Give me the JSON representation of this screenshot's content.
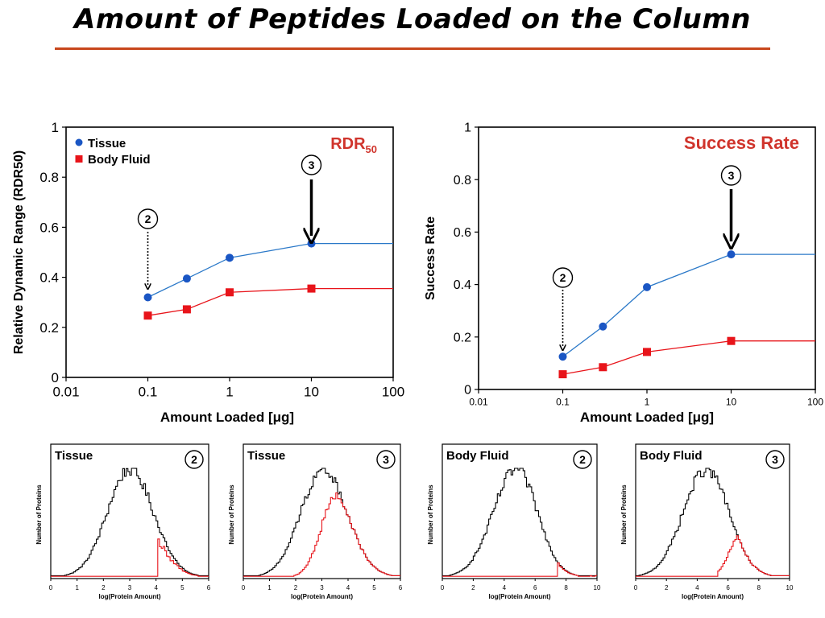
{
  "slide": {
    "title": "Amount of Peptides Loaded on the Column"
  },
  "colors": {
    "tissue": "#1a56c4",
    "tissue_line": "#2a78c8",
    "fluid": "#e8141a",
    "label_red": "#d0342c"
  },
  "chart_data": [
    {
      "id": "rdr50",
      "type": "line",
      "title": "RDR",
      "title_sub": "50",
      "xlabel": "Amount Loaded [μg]",
      "ylabel": "Relative Dynamic Range (RDR50)",
      "x_scale": "log",
      "xlim": [
        0.01,
        100
      ],
      "ylim": [
        0,
        1
      ],
      "xticks": [
        "0.01",
        "0.1",
        "1",
        "10",
        "100"
      ],
      "yticks": [
        "0",
        "0.2",
        "0.4",
        "0.6",
        "0.8",
        "1"
      ],
      "legend": "top-left",
      "series": [
        {
          "name": "Tissue",
          "marker": "circle",
          "x": [
            0.1,
            0.3,
            1,
            10
          ],
          "y": [
            0.32,
            0.395,
            0.478,
            0.535
          ],
          "plateau": 0.535
        },
        {
          "name": "Body Fluid",
          "marker": "square",
          "x": [
            0.1,
            0.3,
            1,
            10
          ],
          "y": [
            0.247,
            0.272,
            0.34,
            0.355
          ],
          "plateau": 0.355
        }
      ],
      "annotations": [
        {
          "label": "2",
          "x": 0.1,
          "style": "dotted"
        },
        {
          "label": "3",
          "x": 10,
          "style": "solid"
        }
      ]
    },
    {
      "id": "success-rate",
      "type": "line",
      "title": "Success Rate",
      "xlabel": "Amount Loaded [μg]",
      "ylabel": "Success Rate",
      "x_scale": "log",
      "xlim": [
        0.01,
        100
      ],
      "ylim": [
        0,
        1
      ],
      "xticks": [
        "0.01",
        "0.1",
        "1",
        "10",
        "100"
      ],
      "yticks": [
        "0",
        "0.2",
        "0.4",
        "0.6",
        "0.8",
        "1"
      ],
      "series": [
        {
          "name": "Tissue",
          "marker": "circle",
          "x": [
            0.1,
            0.3,
            1,
            10
          ],
          "y": [
            0.125,
            0.24,
            0.39,
            0.515
          ],
          "plateau": 0.515
        },
        {
          "name": "Body Fluid",
          "marker": "square",
          "x": [
            0.1,
            0.3,
            1,
            10
          ],
          "y": [
            0.058,
            0.085,
            0.143,
            0.185
          ],
          "plateau": 0.185
        }
      ],
      "annotations": [
        {
          "label": "2",
          "x": 0.1,
          "style": "dotted"
        },
        {
          "label": "3",
          "x": 10,
          "style": "solid"
        }
      ]
    },
    {
      "id": "hist-tissue-2",
      "type": "histogram",
      "title": "Tissue",
      "badge": "2",
      "xlabel": "log(Protein Amount)",
      "ylabel": "Number of Proteins",
      "xlim": [
        0,
        6
      ],
      "xticks": [
        "0",
        "1",
        "2",
        "3",
        "4",
        "5",
        "6"
      ],
      "all": {
        "peak": 3.0,
        "sd_left": 0.85,
        "sd_right": 0.9
      },
      "identified": {
        "cutoff": 4.05,
        "fraction": 0.75
      }
    },
    {
      "id": "hist-tissue-3",
      "type": "histogram",
      "title": "Tissue",
      "badge": "3",
      "xlabel": "log(Protein Amount)",
      "ylabel": "Number of Proteins",
      "xlim": [
        0,
        6
      ],
      "xticks": [
        "0",
        "1",
        "2",
        "3",
        "4",
        "5",
        "6"
      ],
      "all": {
        "peak": 3.05,
        "sd_left": 0.85,
        "sd_right": 0.9
      },
      "identified": {
        "peak": 3.5,
        "sd_left": 0.55,
        "fraction": 0.72
      }
    },
    {
      "id": "hist-fluid-2",
      "type": "histogram",
      "title": "Body Fluid",
      "badge": "2",
      "xlabel": "log(Protein Amount)",
      "ylabel": "Number of Proteins",
      "xlim": [
        0,
        10
      ],
      "xticks": [
        "0",
        "2",
        "4",
        "6",
        "8",
        "10"
      ],
      "all": {
        "peak": 4.8,
        "sd_left": 1.5,
        "sd_right": 1.35
      },
      "identified": {
        "cutoff": 7.4,
        "fraction": 0.95
      }
    },
    {
      "id": "hist-fluid-3",
      "type": "histogram",
      "title": "Body Fluid",
      "badge": "3",
      "xlabel": "log(Protein Amount)",
      "ylabel": "Number of Proteins",
      "xlim": [
        0,
        10
      ],
      "xticks": [
        "0",
        "2",
        "4",
        "6",
        "8",
        "10"
      ],
      "all": {
        "peak": 4.6,
        "sd_left": 1.5,
        "sd_right": 1.45
      },
      "identified": {
        "peak": 6.9,
        "sd_left": 0.75,
        "sd_right": 1.2,
        "fraction": 0.42,
        "start": 5.3
      }
    }
  ]
}
